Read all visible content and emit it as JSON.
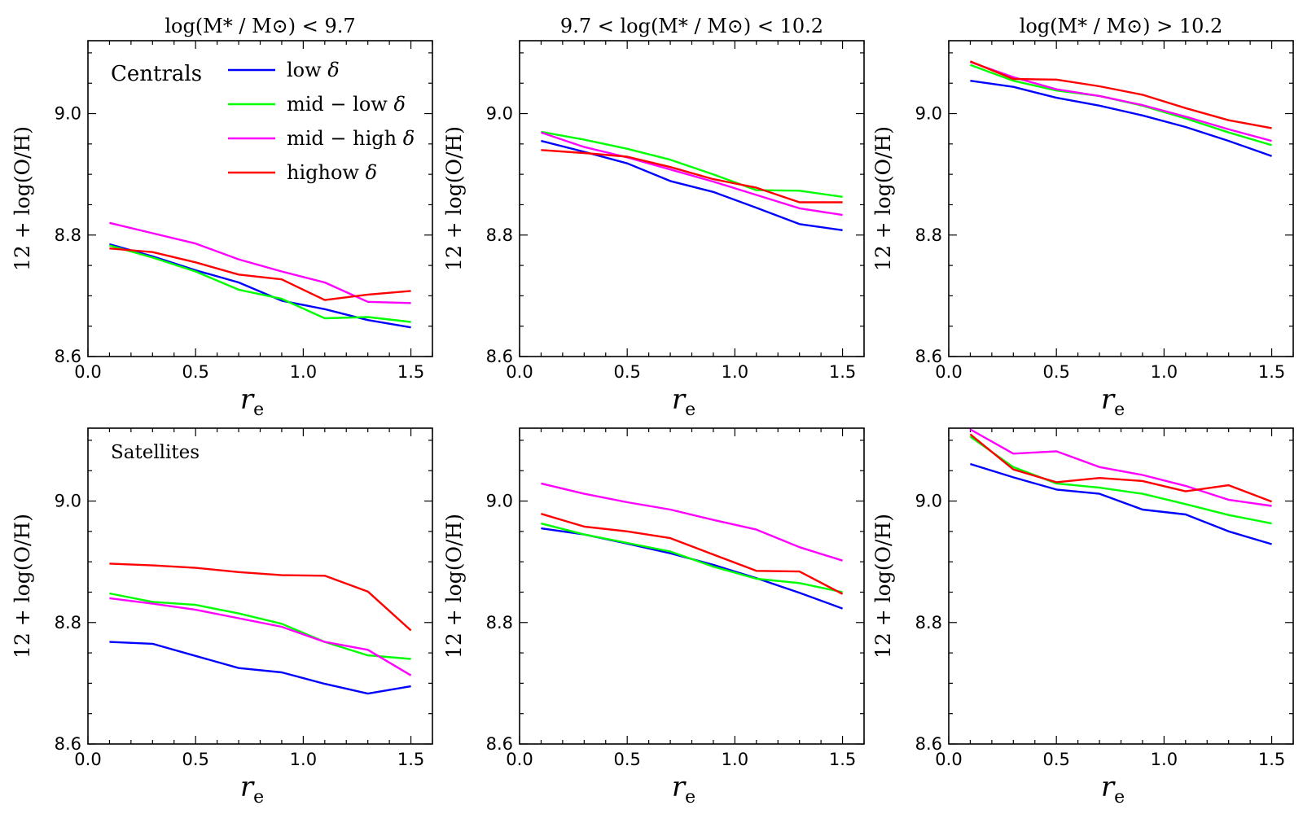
{
  "chart_data": {
    "type": "line",
    "legend": {
      "placement": "top-left panel",
      "entries": [
        {
          "name": "low",
          "symbol": "δ",
          "color": "#0000ff"
        },
        {
          "name": "mid − low",
          "symbol": "δ",
          "color": "#00ff00"
        },
        {
          "name": "mid − high",
          "symbol": "δ",
          "color": "#ff00ff"
        },
        {
          "name": "highow",
          "symbol": "δ",
          "color": "#ff0000"
        }
      ]
    },
    "shared_axes": {
      "xlabel": "r",
      "xlabel_sub": "e",
      "ylabel": "12 + log(O/H)",
      "xlim": [
        0.0,
        1.6
      ],
      "ylim": [
        8.6,
        9.12
      ],
      "xticks": [
        "0.0",
        "0.5",
        "1.0",
        "1.5"
      ],
      "yticks": [
        "8.6",
        "8.8",
        "9.0"
      ],
      "x": [
        0.1,
        0.3,
        0.5,
        0.7,
        0.9,
        1.1,
        1.3,
        1.5
      ]
    },
    "panels": [
      {
        "row": 0,
        "col": 0,
        "title": "log(M* / M⊙) < 9.7",
        "annotation": "Centrals",
        "series": [
          {
            "name": "low",
            "values": [
              8.785,
              8.765,
              8.742,
              8.722,
              8.692,
              8.678,
              8.66,
              8.648
            ]
          },
          {
            "name": "mid − low",
            "values": [
              8.783,
              8.763,
              8.74,
              8.71,
              8.695,
              8.663,
              8.665,
              8.657
            ]
          },
          {
            "name": "mid − high",
            "values": [
              8.82,
              8.803,
              8.786,
              8.76,
              8.74,
              8.722,
              8.69,
              8.688
            ]
          },
          {
            "name": "highow",
            "values": [
              8.778,
              8.772,
              8.755,
              8.735,
              8.727,
              8.693,
              8.702,
              8.708
            ]
          }
        ]
      },
      {
        "row": 0,
        "col": 1,
        "title": "9.7 < log(M* / M⊙) < 10.2",
        "annotation": "",
        "series": [
          {
            "name": "low",
            "values": [
              8.955,
              8.937,
              8.918,
              8.889,
              8.871,
              8.845,
              8.818,
              8.808
            ]
          },
          {
            "name": "mid − low",
            "values": [
              8.97,
              8.957,
              8.942,
              8.924,
              8.9,
              8.874,
              8.873,
              8.863
            ]
          },
          {
            "name": "mid − high",
            "values": [
              8.969,
              8.945,
              8.928,
              8.908,
              8.888,
              8.866,
              8.844,
              8.833
            ]
          },
          {
            "name": "highow",
            "values": [
              8.94,
              8.935,
              8.929,
              8.912,
              8.892,
              8.878,
              8.854,
              8.854
            ]
          }
        ]
      },
      {
        "row": 0,
        "col": 2,
        "title": "log(M* / M⊙) > 10.2",
        "annotation": "",
        "series": [
          {
            "name": "low",
            "values": [
              9.054,
              9.044,
              9.026,
              9.013,
              8.997,
              8.978,
              8.955,
              8.93
            ]
          },
          {
            "name": "mid − low",
            "values": [
              9.08,
              9.054,
              9.038,
              9.029,
              9.013,
              8.992,
              8.969,
              8.948
            ]
          },
          {
            "name": "mid − high",
            "values": [
              9.085,
              9.06,
              9.04,
              9.029,
              9.014,
              8.995,
              8.974,
              8.955
            ]
          },
          {
            "name": "highow",
            "values": [
              9.086,
              9.057,
              9.056,
              9.045,
              9.031,
              9.009,
              8.989,
              8.976
            ]
          }
        ]
      },
      {
        "row": 1,
        "col": 0,
        "title": "",
        "annotation": "Satellites",
        "series": [
          {
            "name": "low",
            "values": [
              8.768,
              8.765,
              8.745,
              8.725,
              8.718,
              8.699,
              8.683,
              8.695
            ]
          },
          {
            "name": "mid − low",
            "values": [
              8.848,
              8.834,
              8.829,
              8.815,
              8.798,
              8.768,
              8.746,
              8.74
            ]
          },
          {
            "name": "mid − high",
            "values": [
              8.84,
              8.831,
              8.821,
              8.807,
              8.793,
              8.768,
              8.755,
              8.713
            ]
          },
          {
            "name": "highow",
            "values": [
              8.897,
              8.894,
              8.89,
              8.883,
              8.878,
              8.877,
              8.851,
              8.787
            ]
          }
        ]
      },
      {
        "row": 1,
        "col": 1,
        "title": "",
        "annotation": "",
        "series": [
          {
            "name": "low",
            "values": [
              8.955,
              8.945,
              8.93,
              8.914,
              8.895,
              8.873,
              8.849,
              8.823
            ]
          },
          {
            "name": "mid − low",
            "values": [
              8.963,
              8.945,
              8.931,
              8.917,
              8.892,
              8.872,
              8.865,
              8.85
            ]
          },
          {
            "name": "mid − high",
            "values": [
              9.029,
              9.012,
              8.998,
              8.986,
              8.969,
              8.953,
              8.924,
              8.902
            ]
          },
          {
            "name": "highow",
            "values": [
              8.979,
              8.958,
              8.95,
              8.939,
              8.912,
              8.885,
              8.884,
              8.847
            ]
          }
        ]
      },
      {
        "row": 1,
        "col": 2,
        "title": "",
        "annotation": "",
        "series": [
          {
            "name": "low",
            "values": [
              9.061,
              9.039,
              9.019,
              9.012,
              8.986,
              8.978,
              8.95,
              8.929
            ]
          },
          {
            "name": "mid − low",
            "values": [
              9.106,
              9.056,
              9.029,
              9.022,
              9.012,
              8.995,
              8.977,
              8.963
            ]
          },
          {
            "name": "mid − high",
            "values": [
              9.118,
              9.078,
              9.082,
              9.056,
              9.043,
              9.025,
              9.002,
              8.992
            ]
          },
          {
            "name": "highow",
            "values": [
              9.11,
              9.052,
              9.031,
              9.038,
              9.033,
              9.016,
              9.026,
              8.999
            ]
          }
        ]
      }
    ]
  }
}
